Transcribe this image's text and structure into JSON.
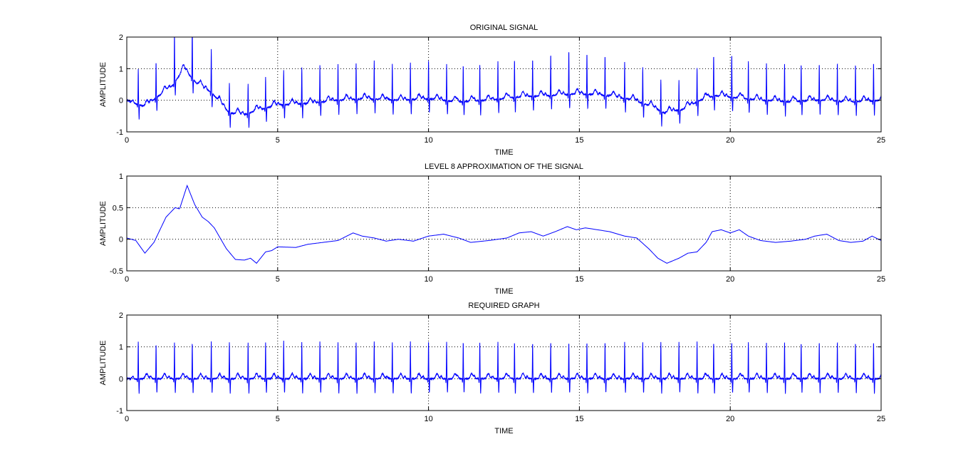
{
  "figure": {
    "background": "#ffffff",
    "line_color": "#0000ff"
  },
  "chart_data": [
    {
      "type": "line",
      "title": "ORIGINAL SIGNAL",
      "xlabel": "TIME",
      "ylabel": "AMPLITUDE",
      "xlim": [
        0,
        25
      ],
      "ylim": [
        -1,
        2
      ],
      "xticks": [
        0,
        5,
        10,
        15,
        20,
        25
      ],
      "yticks": [
        -1,
        0,
        1,
        2
      ],
      "grid": "dotted at interior ticks",
      "series": [
        {
          "color": "#0000ff",
          "signal": "ECG-like trace with baseline wander",
          "beat_times": [
            0.38,
            0.97,
            1.58,
            2.17,
            2.8,
            3.4,
            4.02,
            4.6,
            5.2,
            5.8,
            6.4,
            7.0,
            7.6,
            8.2,
            8.8,
            9.4,
            10.0,
            10.6,
            11.15,
            11.7,
            12.3,
            12.85,
            13.45,
            14.05,
            14.65,
            15.25,
            15.85,
            16.5,
            17.1,
            17.7,
            18.3,
            18.9,
            19.45,
            20.05,
            20.6,
            21.2,
            21.8,
            22.35,
            22.95,
            23.55,
            24.15,
            24.75
          ],
          "baseline": [
            [
              0,
              0
            ],
            [
              0.6,
              -0.2
            ],
            [
              1.0,
              0.1
            ],
            [
              1.5,
              0.45
            ],
            [
              1.9,
              1.0
            ],
            [
              2.3,
              0.55
            ],
            [
              2.8,
              0.25
            ],
            [
              3.4,
              -0.4
            ],
            [
              3.9,
              -0.45
            ],
            [
              4.4,
              -0.3
            ],
            [
              5.0,
              -0.15
            ],
            [
              6.0,
              -0.1
            ],
            [
              7.0,
              0.0
            ],
            [
              8.0,
              0.05
            ],
            [
              9.0,
              0.0
            ],
            [
              10.0,
              0.05
            ],
            [
              11.0,
              -0.05
            ],
            [
              12.0,
              0.0
            ],
            [
              13.0,
              0.1
            ],
            [
              14.0,
              0.15
            ],
            [
              15.0,
              0.2
            ],
            [
              16.0,
              0.15
            ],
            [
              16.8,
              0.0
            ],
            [
              17.4,
              -0.2
            ],
            [
              17.8,
              -0.4
            ],
            [
              18.4,
              -0.3
            ],
            [
              19.0,
              0.0
            ],
            [
              19.5,
              0.15
            ],
            [
              20.0,
              0.1
            ],
            [
              21.0,
              0.0
            ],
            [
              22.0,
              -0.05
            ],
            [
              23.0,
              0.0
            ],
            [
              24.0,
              -0.05
            ],
            [
              25.0,
              0.0
            ]
          ],
          "peak_heights": [
            1.1,
            1.15,
            1.6,
            1.75,
            1.35,
            0.95,
            0.95,
            1.0,
            1.1,
            1.15,
            1.15,
            1.15,
            1.15,
            1.2,
            1.15,
            1.15,
            1.2,
            1.15,
            1.15,
            1.15,
            1.2,
            1.2,
            1.2,
            1.3,
            1.4,
            1.3,
            1.25,
            1.15,
            1.15,
            1.0,
            0.95,
            1.05,
            1.3,
            1.35,
            1.2,
            1.2,
            1.2,
            1.2,
            1.15,
            1.2,
            1.2,
            1.2
          ]
        }
      ]
    },
    {
      "type": "line",
      "title": "LEVEL 8 APPROXIMATION OF THE SIGNAL",
      "xlabel": "TIME",
      "ylabel": "AMPLITUDE",
      "xlim": [
        0,
        25
      ],
      "ylim": [
        -0.5,
        1
      ],
      "xticks": [
        0,
        5,
        10,
        15,
        20,
        25
      ],
      "yticks": [
        -0.5,
        0,
        0.5,
        1
      ],
      "grid": "dotted at interior ticks",
      "series": [
        {
          "color": "#0000ff",
          "points": [
            [
              0,
              0.02
            ],
            [
              0.3,
              -0.02
            ],
            [
              0.6,
              -0.22
            ],
            [
              0.9,
              -0.05
            ],
            [
              1.3,
              0.35
            ],
            [
              1.6,
              0.5
            ],
            [
              1.75,
              0.48
            ],
            [
              2.0,
              0.85
            ],
            [
              2.25,
              0.55
            ],
            [
              2.5,
              0.35
            ],
            [
              2.7,
              0.28
            ],
            [
              2.9,
              0.18
            ],
            [
              3.3,
              -0.15
            ],
            [
              3.6,
              -0.32
            ],
            [
              3.9,
              -0.33
            ],
            [
              4.1,
              -0.3
            ],
            [
              4.3,
              -0.38
            ],
            [
              4.6,
              -0.2
            ],
            [
              4.8,
              -0.18
            ],
            [
              5.0,
              -0.12
            ],
            [
              5.6,
              -0.13
            ],
            [
              6.0,
              -0.08
            ],
            [
              6.5,
              -0.05
            ],
            [
              7.0,
              -0.02
            ],
            [
              7.5,
              0.1
            ],
            [
              7.8,
              0.05
            ],
            [
              8.2,
              0.02
            ],
            [
              8.6,
              -0.03
            ],
            [
              9.0,
              0.0
            ],
            [
              9.5,
              -0.03
            ],
            [
              10.0,
              0.05
            ],
            [
              10.5,
              0.08
            ],
            [
              11.0,
              0.02
            ],
            [
              11.4,
              -0.05
            ],
            [
              12.0,
              -0.02
            ],
            [
              12.6,
              0.02
            ],
            [
              13.0,
              0.1
            ],
            [
              13.4,
              0.12
            ],
            [
              13.8,
              0.05
            ],
            [
              14.2,
              0.12
            ],
            [
              14.6,
              0.2
            ],
            [
              14.9,
              0.15
            ],
            [
              15.2,
              0.18
            ],
            [
              15.6,
              0.15
            ],
            [
              16.0,
              0.12
            ],
            [
              16.5,
              0.05
            ],
            [
              16.9,
              0.02
            ],
            [
              17.3,
              -0.15
            ],
            [
              17.6,
              -0.3
            ],
            [
              17.9,
              -0.38
            ],
            [
              18.3,
              -0.3
            ],
            [
              18.6,
              -0.22
            ],
            [
              18.9,
              -0.2
            ],
            [
              19.2,
              -0.05
            ],
            [
              19.4,
              0.12
            ],
            [
              19.7,
              0.15
            ],
            [
              20.0,
              0.1
            ],
            [
              20.3,
              0.15
            ],
            [
              20.6,
              0.05
            ],
            [
              21.0,
              -0.02
            ],
            [
              21.5,
              -0.05
            ],
            [
              22.0,
              -0.03
            ],
            [
              22.5,
              0.0
            ],
            [
              22.8,
              0.05
            ],
            [
              23.2,
              0.08
            ],
            [
              23.6,
              -0.02
            ],
            [
              24.0,
              -0.05
            ],
            [
              24.4,
              -0.03
            ],
            [
              24.7,
              0.05
            ],
            [
              25.0,
              -0.02
            ]
          ]
        }
      ]
    },
    {
      "type": "line",
      "title": "REQUIRED GRAPH",
      "xlabel": "TIME",
      "ylabel": "AMPLITUDE",
      "xlim": [
        0,
        25
      ],
      "ylim": [
        -1,
        2
      ],
      "xticks": [
        0,
        5,
        10,
        15,
        20,
        25
      ],
      "yticks": [
        -1,
        0,
        1,
        2
      ],
      "grid": "dotted at interior ticks",
      "series": [
        {
          "color": "#0000ff",
          "signal": "ECG-like trace with baseline removed",
          "beat_times": [
            0.38,
            0.97,
            1.58,
            2.17,
            2.8,
            3.4,
            4.02,
            4.6,
            5.2,
            5.8,
            6.4,
            7.0,
            7.6,
            8.2,
            8.8,
            9.4,
            10.0,
            10.6,
            11.15,
            11.7,
            12.3,
            12.85,
            13.45,
            14.05,
            14.65,
            15.25,
            15.85,
            16.5,
            17.1,
            17.7,
            18.3,
            18.9,
            19.45,
            20.05,
            20.6,
            21.2,
            21.8,
            22.35,
            22.95,
            23.55,
            24.15,
            24.75
          ],
          "baseline": [
            [
              0,
              0
            ],
            [
              25,
              0
            ]
          ],
          "peak_heights": [
            1.15,
            1.1,
            1.15,
            1.15,
            1.15,
            1.15,
            1.15,
            1.15,
            1.2,
            1.15,
            1.15,
            1.15,
            1.15,
            1.15,
            1.15,
            1.15,
            1.15,
            1.15,
            1.15,
            1.15,
            1.15,
            1.15,
            1.15,
            1.15,
            1.15,
            1.15,
            1.15,
            1.15,
            1.15,
            1.15,
            1.15,
            1.15,
            1.15,
            1.15,
            1.15,
            1.15,
            1.15,
            1.15,
            1.15,
            1.15,
            1.15,
            1.15
          ]
        }
      ]
    }
  ]
}
